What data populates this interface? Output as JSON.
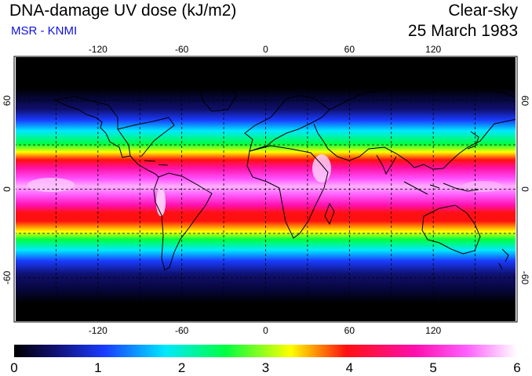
{
  "header": {
    "title": "DNA-damage UV dose (kJ/m2)",
    "source": "MSR - KNMI",
    "condition": "Clear-sky",
    "date": "25 March 1983"
  },
  "map": {
    "projection": "equirectangular",
    "lon_range": [
      -180,
      180
    ],
    "lat_range": [
      -90,
      90
    ],
    "lon_ticks": [
      -120,
      -60,
      0,
      60,
      120
    ],
    "lat_ticks": [
      60,
      0,
      -60
    ],
    "grid": "dashed 30° lines",
    "colors": {
      "background": "#000000",
      "coastline": "#000000",
      "grid": "#000000"
    }
  },
  "colorbar": {
    "min": 0,
    "max": 6,
    "ticks": [
      "0",
      "1",
      "2",
      "3",
      "4",
      "5",
      "6"
    ],
    "colors": [
      "#000000",
      "#101070",
      "#1a3cff",
      "#00e8ff",
      "#00ff40",
      "#ffff00",
      "#ff1010",
      "#ff10b0",
      "#ff60ff",
      "#ffffff"
    ]
  }
}
